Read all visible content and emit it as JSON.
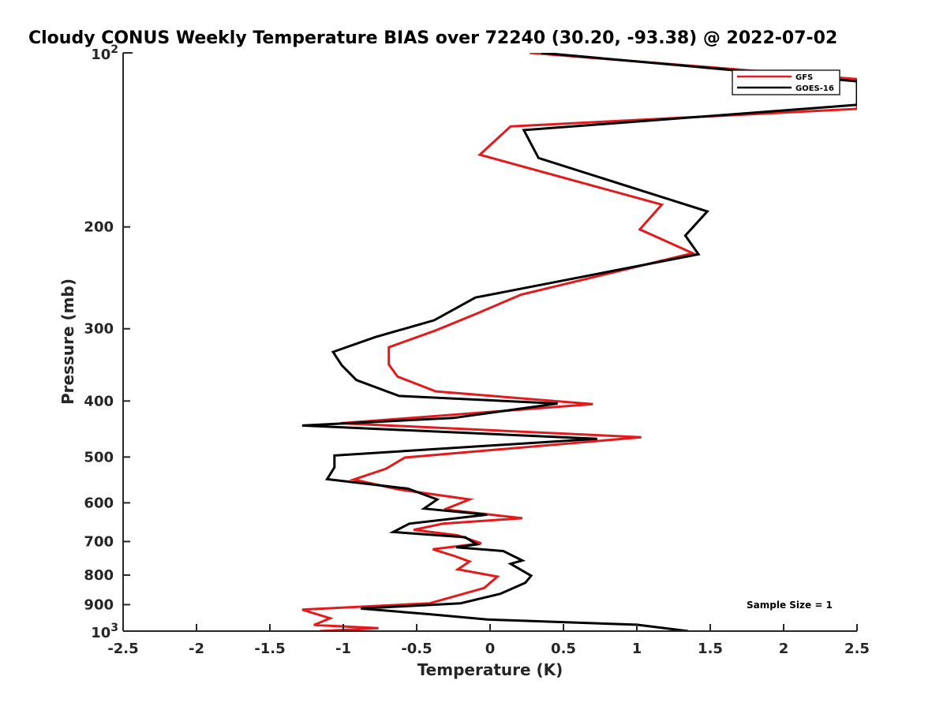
{
  "chart_data": {
    "type": "line",
    "title": "Cloudy CONUS Weekly Temperature BIAS over 72240 (30.20, -93.38) @ 2022-07-02",
    "xlabel": "Temperature (K)",
    "ylabel": "Pressure (mb)",
    "xlim": [
      -2.5,
      2.5
    ],
    "ylim": [
      100,
      1000
    ],
    "yscale": "log",
    "y_reversed": true,
    "grid": false,
    "legend_position": "top-right",
    "x_ticks": [
      -2.5,
      -2,
      -1.5,
      -1,
      -0.5,
      0,
      0.5,
      1,
      1.5,
      2,
      2.5
    ],
    "x_tick_labels": [
      "-2.5",
      "-2",
      "-1.5",
      "-1",
      "-0.5",
      "0",
      "0.5",
      "1",
      "1.5",
      "2",
      "2.5"
    ],
    "y_ticks": [
      200,
      300,
      400,
      500,
      600,
      700,
      800,
      900
    ],
    "y_tick_labels": [
      "200",
      "300",
      "400",
      "500",
      "600",
      "700",
      "800",
      "900"
    ],
    "y_decade_ticks": [
      {
        "value": 100,
        "base": "10",
        "exp": "2"
      },
      {
        "value": 1000,
        "base": "10",
        "exp": "3"
      }
    ],
    "annotation": "Sample Size = 1",
    "series": [
      {
        "name": "GFS",
        "color": "#e31a1c",
        "points": [
          [
            0.27,
            100
          ],
          [
            2.5,
            111
          ],
          [
            2.5,
            125
          ],
          [
            0.14,
            134
          ],
          [
            -0.07,
            150
          ],
          [
            1.17,
            183
          ],
          [
            1.02,
            202
          ],
          [
            1.38,
            222
          ],
          [
            0.21,
            262
          ],
          [
            -0.1,
            283
          ],
          [
            -0.37,
            302
          ],
          [
            -0.69,
            323
          ],
          [
            -0.69,
            346
          ],
          [
            -0.63,
            363
          ],
          [
            -0.37,
            385
          ],
          [
            0.7,
            405
          ],
          [
            -1.02,
            437
          ],
          [
            1.03,
            462
          ],
          [
            -0.58,
            501
          ],
          [
            -0.71,
            524
          ],
          [
            -0.93,
            547
          ],
          [
            -0.62,
            569
          ],
          [
            -0.14,
            592
          ],
          [
            -0.31,
            616
          ],
          [
            0.22,
            638
          ],
          [
            -0.32,
            652
          ],
          [
            -0.52,
            668
          ],
          [
            -0.22,
            683
          ],
          [
            -0.06,
            705
          ],
          [
            -0.39,
            722
          ],
          [
            -0.24,
            742
          ],
          [
            -0.14,
            758
          ],
          [
            -0.22,
            782
          ],
          [
            0.05,
            805
          ],
          [
            -0.04,
            842
          ],
          [
            -0.41,
            895
          ],
          [
            -1.28,
            918
          ],
          [
            -1.09,
            950
          ],
          [
            -1.2,
            976
          ],
          [
            -0.76,
            988
          ],
          [
            -1.16,
            1000
          ]
        ]
      },
      {
        "name": "GOES-16",
        "color": "#000000",
        "points": [
          [
            0.35,
            100
          ],
          [
            2.5,
            112
          ],
          [
            2.5,
            123
          ],
          [
            0.23,
            136
          ],
          [
            0.33,
            152
          ],
          [
            1.48,
            188
          ],
          [
            1.33,
            207
          ],
          [
            1.42,
            223
          ],
          [
            -0.1,
            265
          ],
          [
            -0.38,
            290
          ],
          [
            -0.78,
            310
          ],
          [
            -1.07,
            329
          ],
          [
            -1.01,
            347
          ],
          [
            -0.91,
            368
          ],
          [
            -0.62,
            392
          ],
          [
            0.46,
            404
          ],
          [
            -0.25,
            428
          ],
          [
            -1.28,
            441
          ],
          [
            0.73,
            465
          ],
          [
            -1.06,
            497
          ],
          [
            -1.06,
            521
          ],
          [
            -1.11,
            546
          ],
          [
            -0.56,
            567
          ],
          [
            -0.36,
            592
          ],
          [
            -0.45,
            614
          ],
          [
            -0.02,
            629
          ],
          [
            -0.55,
            652
          ],
          [
            -0.66,
            674
          ],
          [
            -0.17,
            688
          ],
          [
            -0.09,
            708
          ],
          [
            -0.23,
            716
          ],
          [
            0.09,
            727
          ],
          [
            0.22,
            755
          ],
          [
            0.14,
            765
          ],
          [
            0.28,
            802
          ],
          [
            0.24,
            825
          ],
          [
            0.07,
            862
          ],
          [
            -0.2,
            895
          ],
          [
            -0.88,
            914
          ],
          [
            -0.41,
            935
          ],
          [
            -0.02,
            955
          ],
          [
            1.0,
            975
          ],
          [
            1.35,
            1000
          ]
        ]
      }
    ]
  }
}
